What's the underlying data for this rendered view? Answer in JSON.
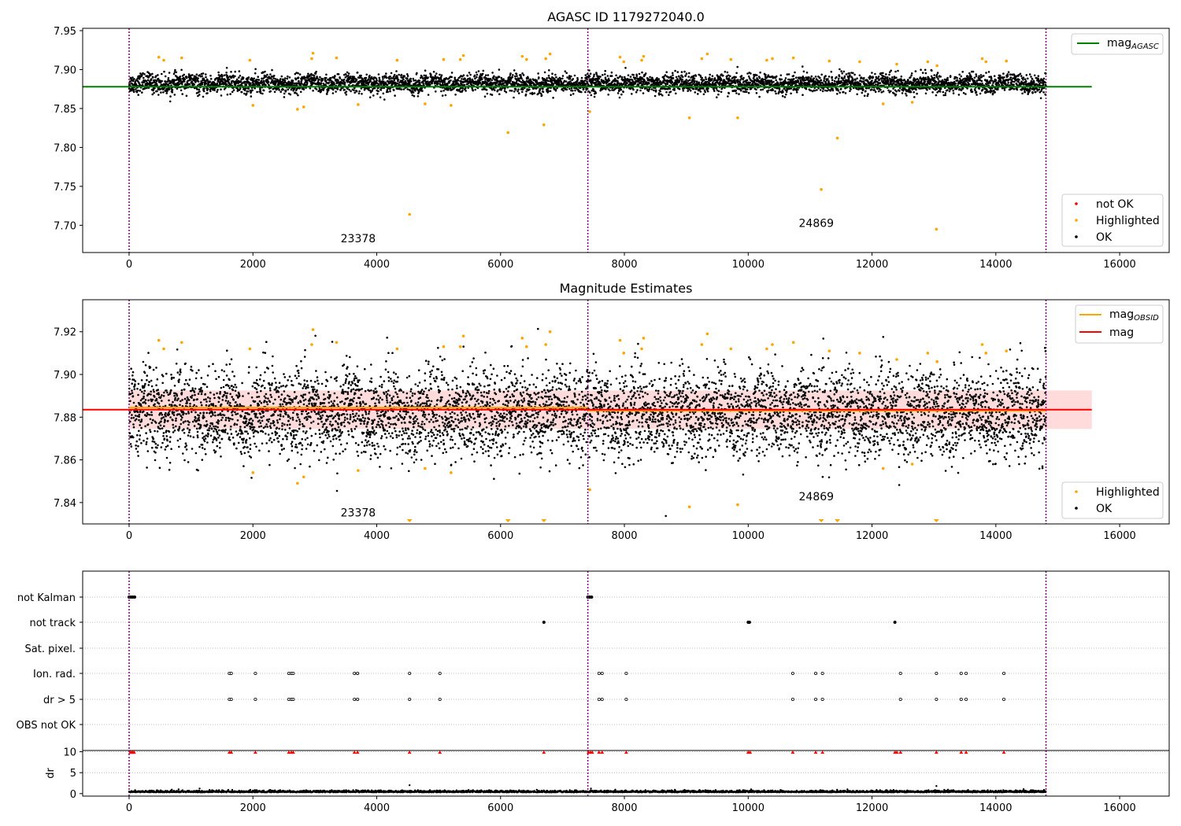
{
  "colors": {
    "ok": "#000000",
    "highlighted": "#ffa500",
    "not_ok": "#ff0000",
    "agasc_line": "#008000",
    "obsid_line": "#ffa500",
    "mag_line": "#ff0000",
    "mag_band": "#ffcccc",
    "obs_boundary": "#800080"
  },
  "chart_data": [
    {
      "type": "scatter",
      "title": "AGASC ID 1179272040.0",
      "xlim": [
        -750,
        16800
      ],
      "ylim": [
        7.665,
        7.953
      ],
      "xticks": [
        "0",
        "2000",
        "4000",
        "6000",
        "8000",
        "10000",
        "12000",
        "14000",
        "16000"
      ],
      "yticks": [
        "7.70",
        "7.75",
        "7.80",
        "7.85",
        "7.90",
        "7.95"
      ],
      "obs_boundaries": [
        0,
        7410,
        14810
      ],
      "annotations": [
        {
          "text": "23378",
          "x": 3700,
          "y": 7.678
        },
        {
          "text": "24869",
          "x": 11100,
          "y": 7.698
        }
      ],
      "lines": [
        {
          "name": "mag",
          "name_sub": "AGASC",
          "y": 7.878,
          "x": [
            -750,
            15550
          ]
        }
      ],
      "ok_band": {
        "x_start": 0,
        "x_end": 14810,
        "center": 7.882,
        "spread": 0.006
      },
      "highlighted_points": [
        [
          480,
          7.916
        ],
        [
          560,
          7.912
        ],
        [
          850,
          7.915
        ],
        [
          1950,
          7.912
        ],
        [
          2000,
          7.854
        ],
        [
          2720,
          7.849
        ],
        [
          2820,
          7.852
        ],
        [
          2950,
          7.914
        ],
        [
          2970,
          7.921
        ],
        [
          3350,
          7.915
        ],
        [
          3700,
          7.855
        ],
        [
          4330,
          7.912
        ],
        [
          4530,
          7.714
        ],
        [
          4780,
          7.856
        ],
        [
          5080,
          7.913
        ],
        [
          5200,
          7.854
        ],
        [
          5350,
          7.913
        ],
        [
          5400,
          7.918
        ],
        [
          6120,
          7.819
        ],
        [
          6350,
          7.917
        ],
        [
          6420,
          7.913
        ],
        [
          6700,
          7.829
        ],
        [
          6730,
          7.914
        ],
        [
          6800,
          7.92
        ],
        [
          7440,
          7.846
        ],
        [
          7930,
          7.916
        ],
        [
          7990,
          7.91
        ],
        [
          8280,
          7.912
        ],
        [
          8310,
          7.917
        ],
        [
          9050,
          7.838
        ],
        [
          9250,
          7.914
        ],
        [
          9340,
          7.92
        ],
        [
          9720,
          7.913
        ],
        [
          9830,
          7.838
        ],
        [
          10300,
          7.912
        ],
        [
          10390,
          7.914
        ],
        [
          10730,
          7.915
        ],
        [
          11180,
          7.746
        ],
        [
          11310,
          7.911
        ],
        [
          11440,
          7.812
        ],
        [
          11800,
          7.91
        ],
        [
          12180,
          7.856
        ],
        [
          12400,
          7.907
        ],
        [
          12650,
          7.858
        ],
        [
          12900,
          7.91
        ],
        [
          13040,
          7.695
        ],
        [
          13050,
          7.905
        ],
        [
          13780,
          7.914
        ],
        [
          13840,
          7.91
        ],
        [
          14170,
          7.911
        ]
      ],
      "legend": {
        "position": "upper right + lower right",
        "upper": [
          {
            "label": "mag",
            "sub": "AGASC",
            "marker": "line",
            "color": "#008000"
          }
        ],
        "lower": [
          {
            "label": "not OK",
            "marker": "dot",
            "color": "#ff0000"
          },
          {
            "label": "Highlighted",
            "marker": "dot",
            "color": "#ffa500"
          },
          {
            "label": "OK",
            "marker": "dot",
            "color": "#000000"
          }
        ]
      }
    },
    {
      "type": "scatter",
      "title": "Magnitude Estimates",
      "xlim": [
        -750,
        16800
      ],
      "ylim": [
        7.83,
        7.935
      ],
      "xticks": [
        "0",
        "2000",
        "4000",
        "6000",
        "8000",
        "10000",
        "12000",
        "14000",
        "16000"
      ],
      "yticks": [
        "7.84",
        "7.86",
        "7.88",
        "7.90",
        "7.92"
      ],
      "obs_boundaries": [
        0,
        7410,
        14810
      ],
      "annotations": [
        {
          "text": "23378",
          "x": 3700,
          "y": 7.8335
        },
        {
          "text": "24869",
          "x": 11100,
          "y": 7.841
        }
      ],
      "lines": [
        {
          "name": "mag",
          "name_sub": "OBSID",
          "color": "#ffa500",
          "segments": [
            {
              "x": [
                0,
                7410
              ],
              "y": 7.8845
            },
            {
              "x": [
                7410,
                14810
              ],
              "y": 7.883
            }
          ]
        },
        {
          "name": "mag",
          "color": "#ff0000",
          "segments": [
            {
              "x": [
                -750,
                15550
              ],
              "y": 7.8835
            }
          ]
        }
      ],
      "mag_band": {
        "x": [
          0,
          15550
        ],
        "y": [
          7.8745,
          7.8925
        ]
      },
      "ok_band": {
        "x_start": 0,
        "x_end": 14810,
        "center": 7.882,
        "spread": 0.01
      },
      "highlighted_points": [
        [
          480,
          7.916
        ],
        [
          560,
          7.912
        ],
        [
          850,
          7.915
        ],
        [
          1950,
          7.912
        ],
        [
          2000,
          7.854
        ],
        [
          2720,
          7.849
        ],
        [
          2820,
          7.852
        ],
        [
          2950,
          7.914
        ],
        [
          2970,
          7.921
        ],
        [
          3350,
          7.915
        ],
        [
          3700,
          7.855
        ],
        [
          4330,
          7.912
        ],
        [
          4780,
          7.856
        ],
        [
          5080,
          7.913
        ],
        [
          5200,
          7.854
        ],
        [
          5350,
          7.913
        ],
        [
          5400,
          7.918
        ],
        [
          6350,
          7.917
        ],
        [
          6420,
          7.913
        ],
        [
          6730,
          7.914
        ],
        [
          6800,
          7.92
        ],
        [
          7440,
          7.846
        ],
        [
          7930,
          7.916
        ],
        [
          7990,
          7.91
        ],
        [
          8280,
          7.912
        ],
        [
          8310,
          7.917
        ],
        [
          9050,
          7.838
        ],
        [
          9250,
          7.914
        ],
        [
          9340,
          7.919
        ],
        [
          9720,
          7.912
        ],
        [
          9830,
          7.839
        ],
        [
          10300,
          7.912
        ],
        [
          10390,
          7.914
        ],
        [
          10730,
          7.915
        ],
        [
          11310,
          7.911
        ],
        [
          11800,
          7.91
        ],
        [
          12180,
          7.856
        ],
        [
          12400,
          7.907
        ],
        [
          12650,
          7.858
        ],
        [
          12900,
          7.91
        ],
        [
          13050,
          7.906
        ],
        [
          13780,
          7.914
        ],
        [
          13840,
          7.91
        ],
        [
          14170,
          7.911
        ]
      ],
      "offscale_points": [
        4530,
        6120,
        6700,
        11180,
        11440,
        13040
      ],
      "legend": {
        "position": "upper right + lower right",
        "upper": [
          {
            "label": "mag",
            "sub": "OBSID",
            "marker": "line",
            "color": "#ffa500"
          },
          {
            "label": "mag",
            "marker": "line",
            "color": "#ff0000"
          }
        ],
        "lower": [
          {
            "label": "Highlighted",
            "marker": "dot",
            "color": "#ffa500"
          },
          {
            "label": "OK",
            "marker": "dot",
            "color": "#000000"
          }
        ]
      }
    },
    {
      "type": "scatter",
      "title": "",
      "xlim": [
        -750,
        16800
      ],
      "xticks": [
        "0",
        "2000",
        "4000",
        "6000",
        "8000",
        "10000",
        "12000",
        "14000",
        "16000"
      ],
      "flag_rows": [
        "not Kalman",
        "not track",
        "Sat. pixel.",
        "Ion. rad.",
        "dr > 5",
        "OBS not OK"
      ],
      "flags": {
        "not Kalman": [
          0,
          30,
          60,
          90,
          7410,
          7440,
          7470
        ],
        "not track": [
          6700,
          10000,
          10020,
          12370
        ],
        "Sat. pixel.": [],
        "Ion. rad.": [
          1620,
          1650,
          2040,
          2580,
          2620,
          2650,
          3640,
          3690,
          4530,
          5020,
          7590,
          7640,
          8030,
          10720,
          11090,
          11200,
          12460,
          13040,
          13440,
          13520,
          14130
        ],
        "dr > 5": [
          1620,
          1650,
          2040,
          2580,
          2620,
          2650,
          3640,
          3690,
          4530,
          5020,
          7590,
          7640,
          8030,
          10720,
          11090,
          11200,
          12460,
          13040,
          13440,
          13520,
          14130
        ],
        "OBS not OK": []
      },
      "obs_boundaries": [
        0,
        7410,
        14810
      ]
    },
    {
      "type": "scatter",
      "title": "",
      "xlim": [
        -750,
        16800
      ],
      "ylim": [
        -0.6,
        10.3
      ],
      "ylabel": "dr",
      "yticks": [
        "0",
        "5",
        "10"
      ],
      "xticks": [
        "0",
        "2000",
        "4000",
        "6000",
        "8000",
        "10000",
        "12000",
        "14000",
        "16000"
      ],
      "obs_boundaries": [
        0,
        7410,
        14810
      ],
      "dr_baseline": {
        "x_start": 0,
        "x_end": 14810,
        "center": 0.3,
        "spread": 0.3
      },
      "dr_outliers": [
        [
          4530,
          2.0
        ],
        [
          13040,
          1.8
        ],
        [
          7460,
          1.2
        ],
        [
          800,
          1.0
        ]
      ],
      "clipped_points": [
        20,
        40,
        60,
        80,
        1620,
        1650,
        2040,
        2580,
        2620,
        2650,
        3640,
        3690,
        4530,
        5020,
        6700,
        7420,
        7450,
        7480,
        7590,
        7640,
        8030,
        10000,
        10030,
        10720,
        11090,
        11200,
        12370,
        12400,
        12460,
        13040,
        13440,
        13520,
        14130
      ]
    }
  ]
}
